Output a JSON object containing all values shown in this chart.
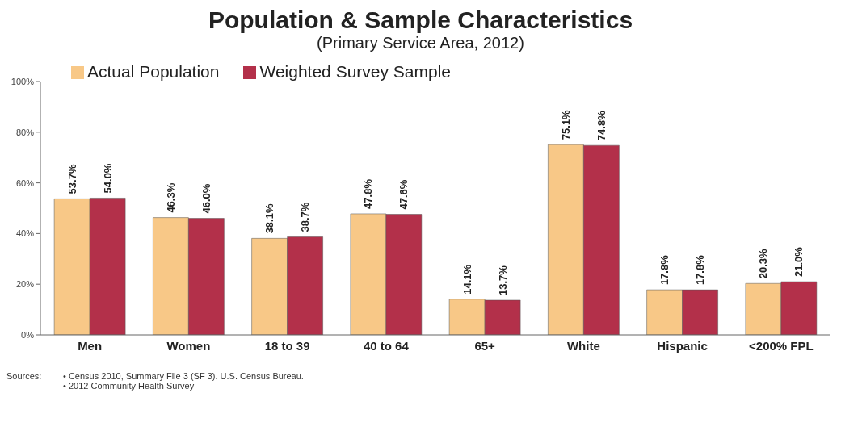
{
  "chart_data": {
    "type": "bar",
    "title": "Population & Sample Characteristics",
    "subtitle": "(Primary Service Area, 2012)",
    "categories": [
      "Men",
      "Women",
      "18 to 39",
      "40 to 64",
      "65+",
      "White",
      "Hispanic",
      "<200% FPL"
    ],
    "series": [
      {
        "name": "Actual Population",
        "color": "#f8c887",
        "values": [
          53.7,
          46.3,
          38.1,
          47.8,
          14.1,
          75.1,
          17.8,
          20.3
        ],
        "value_labels": [
          "53.7%",
          "46.3%",
          "38.1%",
          "47.8%",
          "14.1%",
          "75.1%",
          "17.8%",
          "20.3%"
        ]
      },
      {
        "name": "Weighted Survey Sample",
        "color": "#b3304a",
        "values": [
          54.0,
          46.0,
          38.7,
          47.6,
          13.7,
          74.8,
          17.8,
          21.0
        ],
        "value_labels": [
          "54.0%",
          "46.0%",
          "38.7%",
          "47.6%",
          "13.7%",
          "74.8%",
          "17.8%",
          "21.0%"
        ]
      }
    ],
    "ylim": [
      0,
      100
    ],
    "yticks": [
      {
        "value": 0,
        "label": "0%"
      },
      {
        "value": 20,
        "label": "20%"
      },
      {
        "value": 40,
        "label": "40%"
      },
      {
        "value": 60,
        "label": "60%"
      },
      {
        "value": 80,
        "label": "80%"
      },
      {
        "value": 100,
        "label": "100%"
      }
    ],
    "grid": false,
    "legend": "top left",
    "annotations": [
      "Sources:",
      "• Census 2010, Summary File 3 (SF 3). U.S. Census Bureau.",
      "• 2012 Community Health Survey"
    ]
  }
}
